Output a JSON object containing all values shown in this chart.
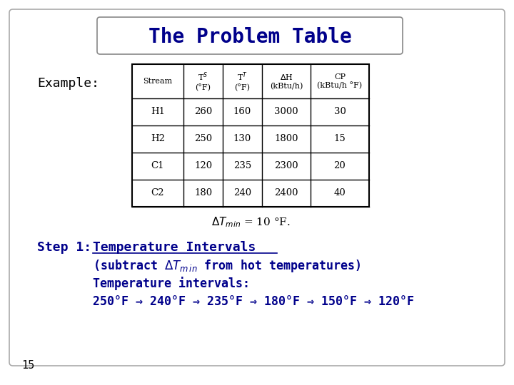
{
  "title": "The Problem Table",
  "title_color": "#00008B",
  "background_color": "#ffffff",
  "border_color": "#888888",
  "table_data": [
    [
      "H1",
      "260",
      "160",
      "3000",
      "30"
    ],
    [
      "H2",
      "250",
      "130",
      "1800",
      "15"
    ],
    [
      "C1",
      "120",
      "235",
      "2300",
      "20"
    ],
    [
      "C2",
      "180",
      "240",
      "2400",
      "40"
    ]
  ],
  "slide_number": "15",
  "body_text_color": "#00008B",
  "table_text_color": "#000000"
}
